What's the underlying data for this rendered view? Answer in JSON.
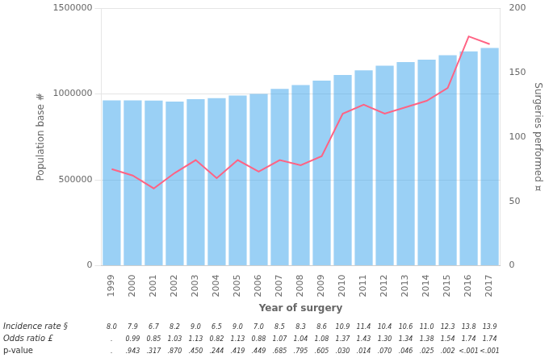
{
  "chart_data": {
    "type": "bar",
    "xlabel": "Year of surgery",
    "ylabel": "Population base #",
    "y2label": "Surgeries performed ¤",
    "categories": [
      "1999",
      "2000",
      "2001",
      "2002",
      "2003",
      "2004",
      "2005",
      "2006",
      "2007",
      "2008",
      "2009",
      "2010",
      "2011",
      "2012",
      "2013",
      "2014",
      "2015",
      "2016",
      "2017"
    ],
    "series": [
      {
        "type": "bar",
        "values": [
          963000,
          963000,
          962000,
          956000,
          970000,
          975000,
          991000,
          1000000,
          1030000,
          1052000,
          1078000,
          1110000,
          1137000,
          1165000,
          1185000,
          1200000,
          1225000,
          1248000,
          1268000
        ]
      },
      {
        "type": "line",
        "axis": "y2",
        "values": [
          75,
          70,
          60,
          72,
          82,
          68,
          82,
          73,
          82,
          78,
          85,
          118,
          125,
          118,
          123,
          128,
          138,
          178,
          172
        ]
      }
    ],
    "ylim": [
      0,
      1500000
    ],
    "yticks": [
      0,
      500000,
      1000000,
      1500000
    ],
    "y2lim": [
      0,
      200
    ],
    "y2ticks": [
      0,
      50,
      100,
      150,
      200
    ],
    "grid": true,
    "table": {
      "rows": [
        {
          "label": "Incidence rate §",
          "values": [
            "8.0",
            "7.9",
            "6.7",
            "8.2",
            "9.0",
            "6.5",
            "9.0",
            "7.0",
            "8.5",
            "8.3",
            "8.6",
            "10.9",
            "11.4",
            "10.4",
            "10.6",
            "11.0",
            "12.3",
            "13.8",
            "13.9"
          ]
        },
        {
          "label": "Odds ratio £",
          "values": [
            ".",
            "0.99",
            "0.85",
            "1.03",
            "1.13",
            "0.82",
            "1.13",
            "0.88",
            "1.07",
            "1.04",
            "1.08",
            "1.37",
            "1.43",
            "1.30",
            "1.34",
            "1.38",
            "1.54",
            "1.74",
            "1.74"
          ]
        },
        {
          "label": "p-value",
          "values": [
            ".",
            ".943",
            ".317",
            ".870",
            ".450",
            ".244",
            ".419",
            ".449",
            ".685",
            ".795",
            ".605",
            ".030",
            ".014",
            ".070",
            ".046",
            ".025",
            ".002",
            "<.001",
            "<.001"
          ]
        }
      ]
    }
  }
}
